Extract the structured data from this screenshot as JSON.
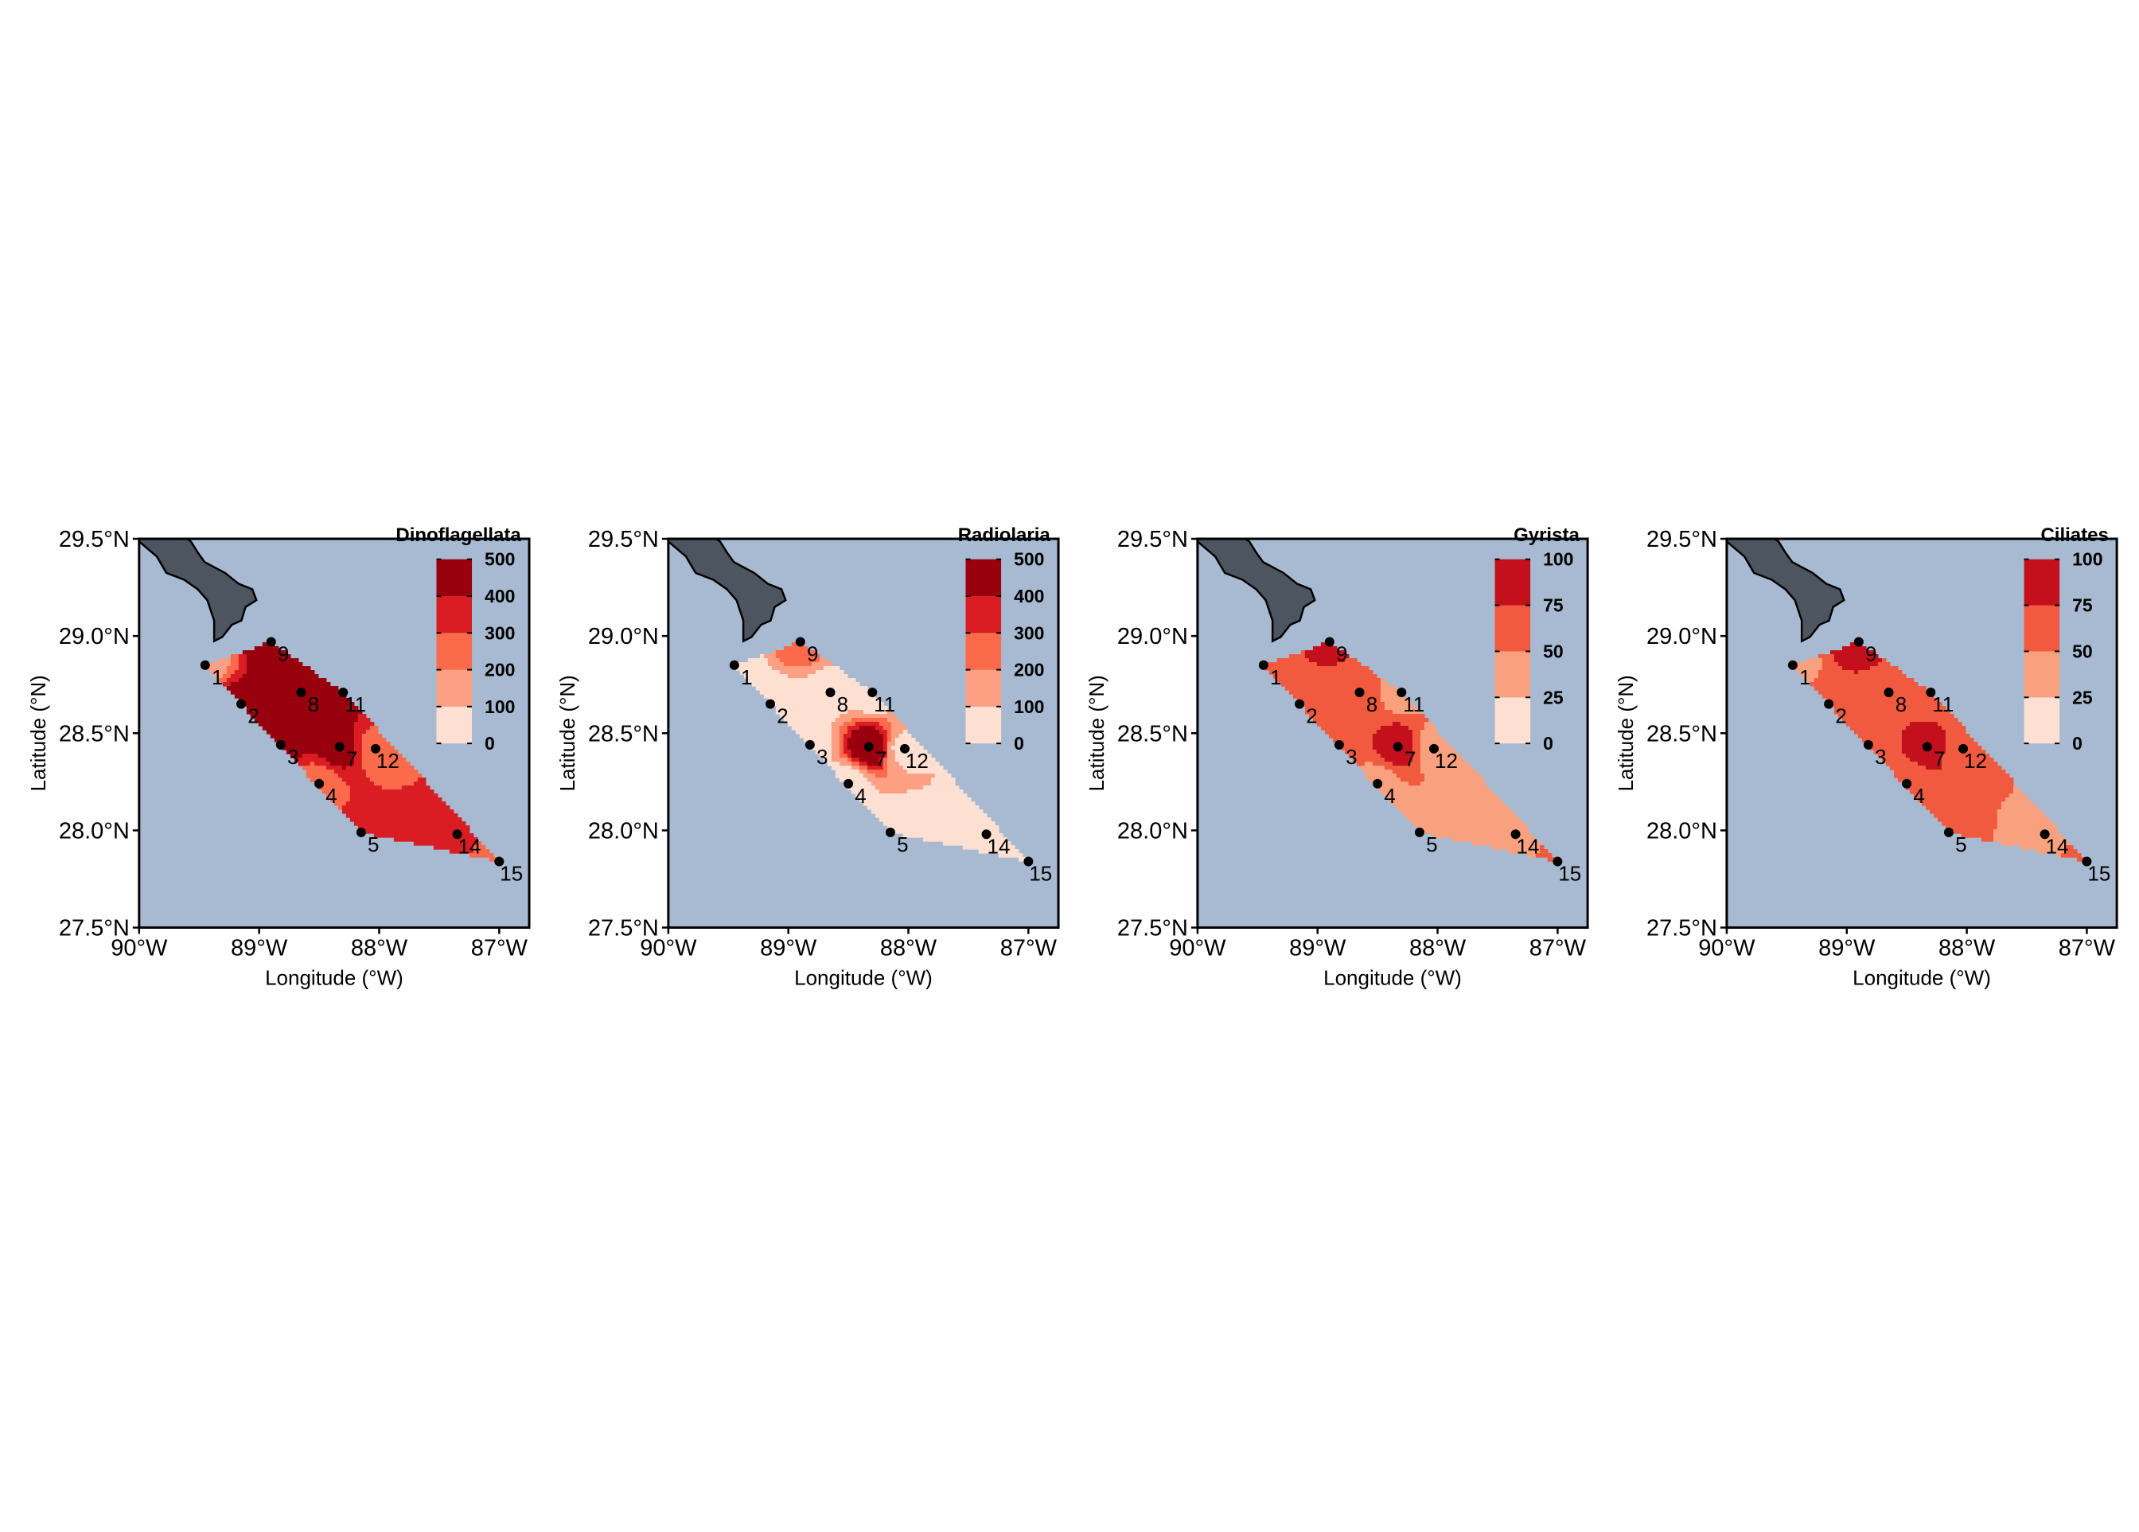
{
  "chart_data": [
    {
      "type": "contour",
      "title": "Dinoflagellata",
      "x_label": "Longitude (°W)",
      "y_label": "Latitude (°N)",
      "xlim": [
        -90,
        -86.75
      ],
      "ylim": [
        27.5,
        29.5
      ],
      "xticks": [
        {
          "value": -90,
          "label": "90°W"
        },
        {
          "value": -89,
          "label": "89°W"
        },
        {
          "value": -88,
          "label": "88°W"
        },
        {
          "value": -87,
          "label": "87°W"
        }
      ],
      "yticks": [
        {
          "value": 27.5,
          "label": "27.5°N"
        },
        {
          "value": 28,
          "label": "28.0°N"
        },
        {
          "value": 28.5,
          "label": "28.5°N"
        },
        {
          "value": 29,
          "label": "29.0°N"
        },
        {
          "value": 29.5,
          "label": "29.5°N"
        }
      ],
      "levels": [
        0,
        100,
        200,
        300,
        400,
        500
      ],
      "colors": [
        "#fee0d2",
        "#fc9f82",
        "#fb6a4a",
        "#d91d23",
        "#99000d"
      ],
      "stations": {
        "labels": [
          "1",
          "2",
          "3",
          "4",
          "5",
          "7",
          "8",
          "9",
          "11",
          "12",
          "14",
          "15"
        ],
        "lon": [
          -89.45,
          -89.15,
          -88.82,
          -88.5,
          -88.15,
          -88.33,
          -88.65,
          -88.9,
          -88.3,
          -88.03,
          -87.35,
          -87.0
        ],
        "lat": [
          28.85,
          28.65,
          28.44,
          28.24,
          27.99,
          28.43,
          28.71,
          28.97,
          28.71,
          28.42,
          27.98,
          27.84
        ],
        "values": [
          150,
          450,
          450,
          250,
          320,
          460,
          480,
          450,
          430,
          260,
          320,
          250
        ]
      }
    },
    {
      "type": "contour",
      "title": "Radiolaria",
      "x_label": "Longitude (°W)",
      "y_label": "Latitude (°N)",
      "xlim": [
        -90,
        -86.75
      ],
      "ylim": [
        27.5,
        29.5
      ],
      "xticks": [
        {
          "value": -90,
          "label": "90°W"
        },
        {
          "value": -89,
          "label": "89°W"
        },
        {
          "value": -88,
          "label": "88°W"
        },
        {
          "value": -87,
          "label": "87°W"
        }
      ],
      "yticks": [
        {
          "value": 27.5,
          "label": "27.5°N"
        },
        {
          "value": 28,
          "label": "28.0°N"
        },
        {
          "value": 28.5,
          "label": "28.5°N"
        },
        {
          "value": 29,
          "label": "29.0°N"
        },
        {
          "value": 29.5,
          "label": "29.5°N"
        }
      ],
      "levels": [
        0,
        100,
        200,
        300,
        400,
        500
      ],
      "colors": [
        "#fee0d2",
        "#fc9f82",
        "#fb6a4a",
        "#d91d23",
        "#99000d"
      ],
      "stations": {
        "labels": [
          "1",
          "2",
          "3",
          "4",
          "5",
          "7",
          "8",
          "9",
          "11",
          "12",
          "14",
          "15"
        ],
        "lon": [
          -89.45,
          -89.15,
          -88.82,
          -88.5,
          -88.15,
          -88.33,
          -88.65,
          -88.9,
          -88.3,
          -88.03,
          -87.35,
          -87.0
        ],
        "lat": [
          28.85,
          28.65,
          28.44,
          28.24,
          27.99,
          28.43,
          28.71,
          28.97,
          28.71,
          28.42,
          27.98,
          27.84
        ],
        "values": [
          40,
          30,
          50,
          40,
          30,
          480,
          60,
          250,
          50,
          80,
          30,
          20
        ]
      }
    },
    {
      "type": "contour",
      "title": "Gyrista",
      "x_label": "Longitude (°W)",
      "y_label": "Latitude (°N)",
      "xlim": [
        -90,
        -86.75
      ],
      "ylim": [
        27.5,
        29.5
      ],
      "xticks": [
        {
          "value": -90,
          "label": "90°W"
        },
        {
          "value": -89,
          "label": "89°W"
        },
        {
          "value": -88,
          "label": "88°W"
        },
        {
          "value": -87,
          "label": "87°W"
        }
      ],
      "yticks": [
        {
          "value": 27.5,
          "label": "27.5°N"
        },
        {
          "value": 28,
          "label": "28.0°N"
        },
        {
          "value": 28.5,
          "label": "28.5°N"
        },
        {
          "value": 29,
          "label": "29.0°N"
        },
        {
          "value": 29.5,
          "label": "29.5°N"
        }
      ],
      "levels": [
        0,
        25,
        50,
        75,
        100
      ],
      "colors": [
        "#fee0d2",
        "#f9a07e",
        "#f15a3e",
        "#c4101d"
      ],
      "stations": {
        "labels": [
          "1",
          "2",
          "3",
          "4",
          "5",
          "7",
          "8",
          "9",
          "11",
          "12",
          "14",
          "15"
        ],
        "lon": [
          -89.45,
          -89.15,
          -88.82,
          -88.5,
          -88.15,
          -88.33,
          -88.65,
          -88.9,
          -88.3,
          -88.03,
          -87.35,
          -87.0
        ],
        "lat": [
          28.85,
          28.65,
          28.44,
          28.24,
          27.99,
          28.43,
          28.71,
          28.97,
          28.71,
          28.42,
          27.98,
          27.84
        ],
        "values": [
          60,
          60,
          62,
          40,
          35,
          88,
          55,
          80,
          45,
          40,
          35,
          55
        ]
      }
    },
    {
      "type": "contour",
      "title": "Ciliates",
      "x_label": "Longitude (°W)",
      "y_label": "Latitude (°N)",
      "xlim": [
        -90,
        -86.75
      ],
      "ylim": [
        27.5,
        29.5
      ],
      "xticks": [
        {
          "value": -90,
          "label": "90°W"
        },
        {
          "value": -89,
          "label": "89°W"
        },
        {
          "value": -88,
          "label": "88°W"
        },
        {
          "value": -87,
          "label": "87°W"
        }
      ],
      "yticks": [
        {
          "value": 27.5,
          "label": "27.5°N"
        },
        {
          "value": 28,
          "label": "28.0°N"
        },
        {
          "value": 28.5,
          "label": "28.5°N"
        },
        {
          "value": 29,
          "label": "29.0°N"
        },
        {
          "value": 29.5,
          "label": "29.5°N"
        }
      ],
      "levels": [
        0,
        25,
        50,
        75,
        100
      ],
      "colors": [
        "#fee0d2",
        "#f9a07e",
        "#f15a3e",
        "#c4101d"
      ],
      "stations": {
        "labels": [
          "1",
          "2",
          "3",
          "4",
          "5",
          "7",
          "8",
          "9",
          "11",
          "12",
          "14",
          "15"
        ],
        "lon": [
          -89.45,
          -89.15,
          -88.82,
          -88.5,
          -88.15,
          -88.33,
          -88.65,
          -88.9,
          -88.3,
          -88.03,
          -87.35,
          -87.0
        ],
        "lat": [
          28.85,
          28.65,
          28.44,
          28.24,
          27.99,
          28.43,
          28.71,
          28.97,
          28.71,
          28.42,
          27.98,
          27.84
        ],
        "values": [
          40,
          60,
          62,
          55,
          55,
          88,
          60,
          88,
          60,
          55,
          40,
          60
        ]
      }
    }
  ]
}
